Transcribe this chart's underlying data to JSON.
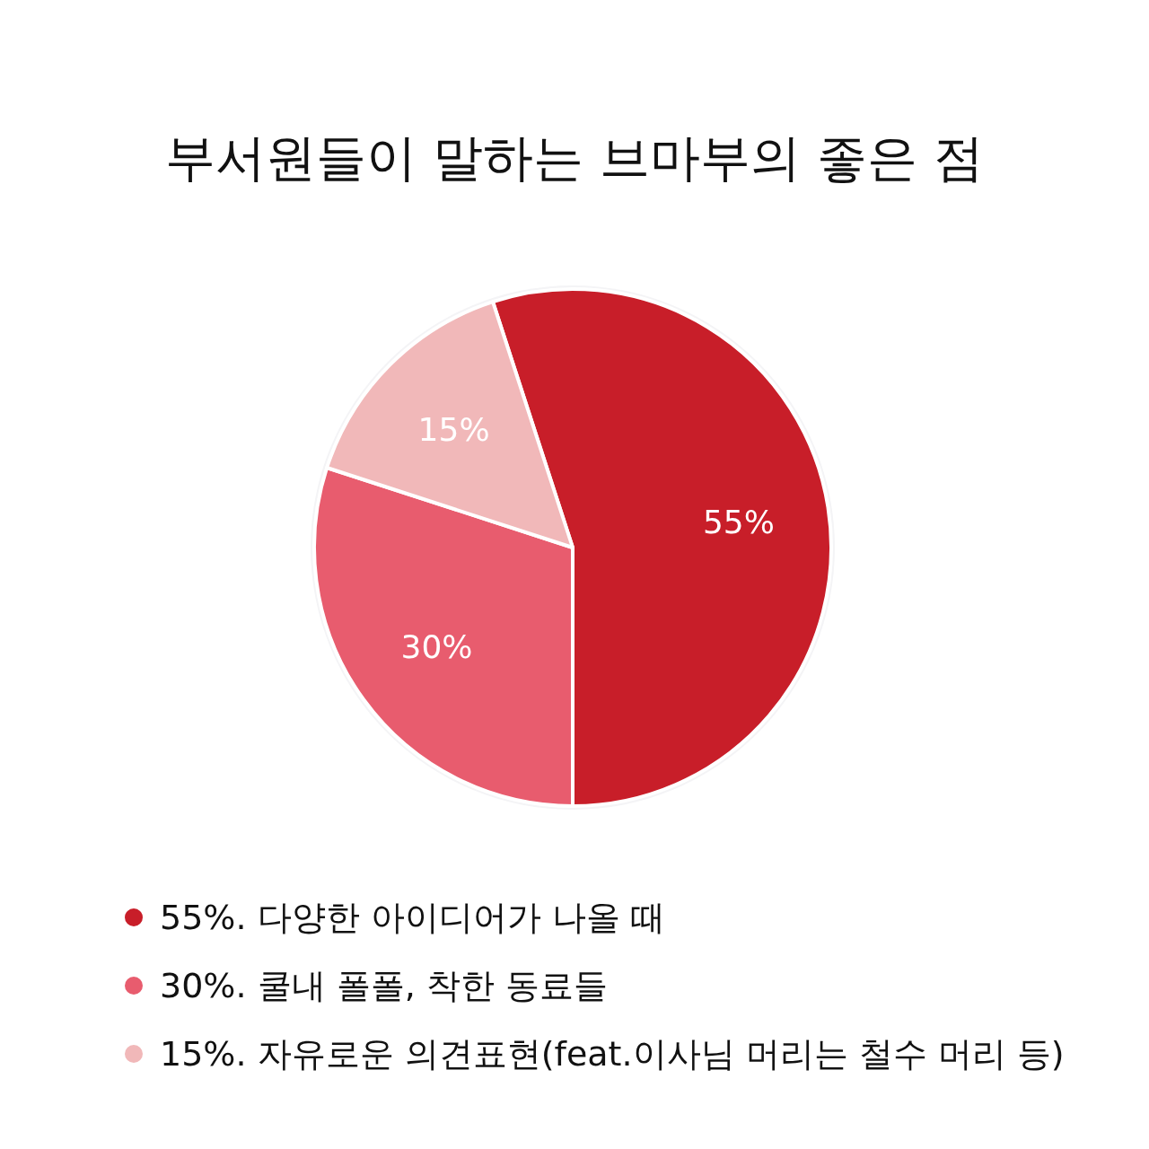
{
  "chart_data": {
    "type": "pie",
    "title": "부서원들이 말하는 브마부의 좋은 점",
    "categories": [
      "55%. 다양한 아이디어가 나올 때",
      "30%. 쿨내 폴폴, 착한 동료들",
      "15%. 자유로운 의견표현(feat.이사님 머리는 철수 머리 등)"
    ],
    "values": [
      55,
      30,
      15
    ],
    "colors": [
      "#c81e29",
      "#e85c6e",
      "#f1b8b9"
    ],
    "value_labels": [
      "55%",
      "30%",
      "15%"
    ],
    "legend": "bottom"
  }
}
